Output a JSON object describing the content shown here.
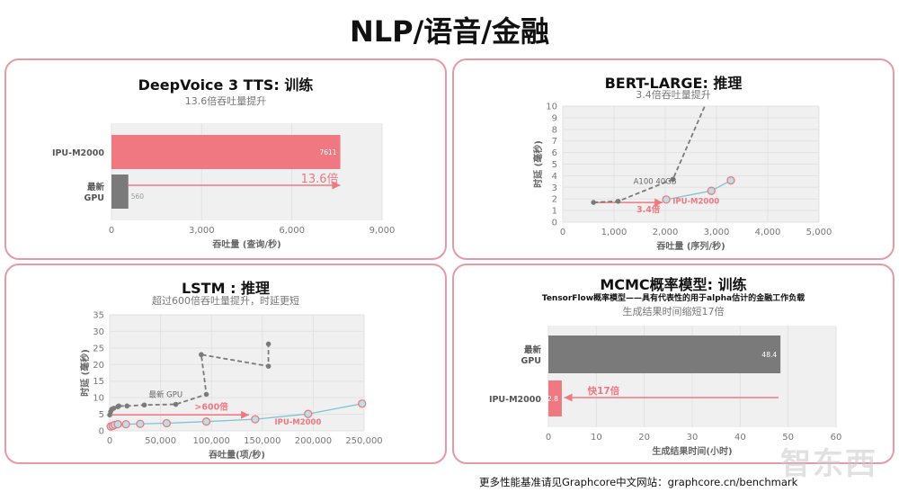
{
  "page_title": "NLP/语音/金融",
  "footer": "更多性能基准请见Graphcore中文网站：graphcore.cn/benchmark",
  "watermark": "智东西",
  "colors": {
    "ipu": "#f07880",
    "gpu": "#7a7a7a",
    "ipu_line": "#7cc3d3",
    "ipu_marker_fill": "#b9e0e6",
    "plot_bg": "#f0f0f0",
    "panel_border": "#e79aa3"
  },
  "chart_data": [
    {
      "type": "bar",
      "orientation": "horizontal",
      "title": "DeepVoice 3 TTS: 训练",
      "subtitle": "13.6倍吞吐量提升",
      "categories": [
        "IPU-M2000",
        "最新\nGPU"
      ],
      "values": [
        7611,
        560
      ],
      "data_labels": [
        "7611",
        "560"
      ],
      "bar_colors": [
        "#f07880",
        "#7a7a7a"
      ],
      "xlabel": "吞吐量 (查询/秒)",
      "xlim": [
        0,
        9000
      ],
      "xticks": [
        0,
        3000,
        6000,
        9000
      ],
      "xtick_labels": [
        "0",
        "3,000",
        "6,000",
        "9,000"
      ],
      "annotation": {
        "text": "13.6倍",
        "from": 560,
        "to": 7611,
        "direction": "right"
      }
    },
    {
      "type": "line",
      "title": "BERT-LARGE: 推理",
      "subtitle": "3.4倍吞吐量提升",
      "xlabel": "吞吐量 (序列/秒)",
      "ylabel": "时延 (毫秒)",
      "xlim": [
        0,
        5000
      ],
      "ylim": [
        0,
        10
      ],
      "xticks": [
        0,
        1000,
        2000,
        3000,
        4000,
        5000
      ],
      "xtick_labels": [
        "0",
        "1,000",
        "2,000",
        "3,000",
        "4,000",
        "5,000"
      ],
      "yticks": [
        0,
        1,
        2,
        3,
        4,
        5,
        6,
        7,
        8,
        9,
        10
      ],
      "ytick_labels": [
        "0",
        "1",
        "2",
        "3",
        "4",
        "5",
        "6",
        "7",
        "8",
        "9",
        "10"
      ],
      "series": [
        {
          "name": "A100 40GB",
          "style": "dashed",
          "color": "#7a7a7a",
          "x": [
            600,
            1080,
            2150,
            2770
          ],
          "y": [
            1.7,
            1.8,
            3.7,
            10
          ]
        },
        {
          "name": "IPU-M2000",
          "style": "solid",
          "color": "#7cc3d3",
          "marker_edge": "#f07880",
          "x": [
            2020,
            2900,
            3280
          ],
          "y": [
            1.95,
            2.7,
            3.6
          ]
        }
      ],
      "annotation": {
        "text": "3.4倍",
        "x_from": 600,
        "x_to": 1950,
        "y": 1.7
      }
    },
    {
      "type": "line",
      "title": "LSTM : 推理",
      "subtitle": "超过600倍吞吐量提升，时延更短",
      "xlabel": "吞吐量(项/秒)",
      "ylabel": "时延 (毫秒)",
      "xlim": [
        0,
        250000
      ],
      "ylim": [
        0,
        35
      ],
      "xticks": [
        0,
        50000,
        100000,
        150000,
        200000,
        250000
      ],
      "xtick_labels": [
        "0",
        "50,000",
        "100,000",
        "150,000",
        "200,000",
        "250,000"
      ],
      "yticks": [
        0,
        5,
        10,
        15,
        20,
        25,
        30,
        35
      ],
      "ytick_labels": [
        "0",
        "5",
        "10",
        "15",
        "20",
        "25",
        "30",
        "35"
      ],
      "series": [
        {
          "name": "最新 GPU",
          "style": "dashed",
          "color": "#7a7a7a",
          "x": [
            0,
            1000,
            2000,
            4000,
            8000,
            9000,
            17000,
            34000,
            65000,
            95000,
            90000,
            156000,
            156000
          ],
          "y": [
            4.8,
            5.8,
            6.5,
            6.8,
            7.3,
            7.5,
            7.5,
            7.8,
            8.0,
            11.0,
            23.0,
            19.5,
            26.2
          ]
        },
        {
          "name": "IPU-M2000",
          "style": "solid",
          "color": "#7cc3d3",
          "marker_edge": "#f07880",
          "x": [
            1000,
            3000,
            5000,
            8000,
            16000,
            30000,
            56000,
            95000,
            143000,
            195000,
            248000
          ],
          "y": [
            1.3,
            1.5,
            1.8,
            2.0,
            2.0,
            2.1,
            2.3,
            2.8,
            3.5,
            5.1,
            8.2
          ]
        }
      ],
      "annotation": {
        "text": ">600倍",
        "x_from": 1000,
        "x_to": 137000,
        "y": 4.8
      }
    },
    {
      "type": "bar",
      "orientation": "horizontal",
      "title": "MCMC概率模型: 训练",
      "description": "TensorFlow概率模型——具有代表性的用于alpha估计的金融工作负载",
      "subtitle": "生成结果时间缩短17倍",
      "categories": [
        "最新\nGPU",
        "IPU-M2000"
      ],
      "values": [
        48.4,
        2.8
      ],
      "data_labels": [
        "48.4",
        "2.8"
      ],
      "bar_colors": [
        "#7a7a7a",
        "#f07880"
      ],
      "xlabel": "生成结果时间(小时)",
      "xlim": [
        0,
        60
      ],
      "xticks": [
        0,
        10,
        20,
        30,
        40,
        50,
        60
      ],
      "xtick_labels": [
        "0",
        "10",
        "20",
        "30",
        "40",
        "50",
        "60"
      ],
      "annotation": {
        "text": "快17倍",
        "from": 48,
        "to": 3.3,
        "direction": "left"
      }
    }
  ]
}
